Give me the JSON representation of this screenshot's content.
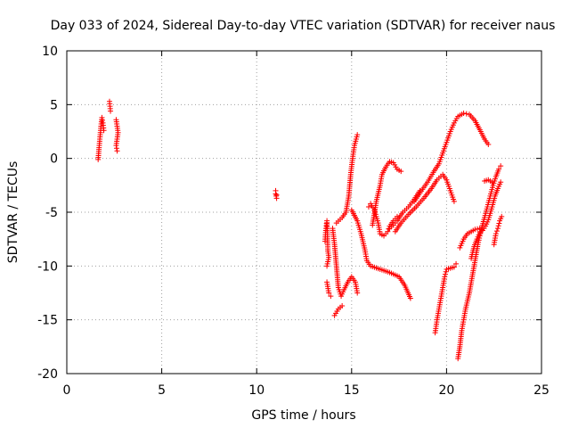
{
  "chart_data": {
    "type": "scatter",
    "title": "Day 033 of 2024, Sidereal Day-to-day VTEC variation (SDTVAR) for receiver naus",
    "xlabel": "GPS time / hours",
    "ylabel": "SDTVAR / TECUs",
    "xlim": [
      0,
      25
    ],
    "ylim": [
      -20,
      10
    ],
    "xticks": [
      "0",
      "5",
      "10",
      "15",
      "20",
      "25"
    ],
    "yticks": [
      "-20",
      "-15",
      "-10",
      "-5",
      "0",
      "5",
      "10"
    ],
    "grid": true,
    "marker": "+",
    "color": "#ff0000",
    "segments": [
      [
        [
          1.65,
          -0.1
        ],
        [
          1.7,
          1.0
        ],
        [
          1.75,
          2.0
        ],
        [
          1.8,
          3.0
        ],
        [
          1.85,
          3.8
        ],
        [
          1.9,
          3.3
        ],
        [
          1.95,
          2.6
        ]
      ],
      [
        [
          2.25,
          5.3
        ],
        [
          2.3,
          4.4
        ]
      ],
      [
        [
          2.6,
          3.6
        ],
        [
          2.65,
          3.0
        ],
        [
          2.7,
          2.4
        ],
        [
          2.6,
          1.2
        ],
        [
          2.65,
          0.7
        ]
      ],
      [
        [
          11.0,
          -3.0
        ],
        [
          11.0,
          -3.3
        ],
        [
          11.05,
          -3.7
        ],
        [
          11.05,
          -3.4
        ]
      ],
      [
        [
          13.6,
          -7.7
        ],
        [
          13.65,
          -6.5
        ],
        [
          13.7,
          -5.8
        ],
        [
          13.75,
          -8.6
        ],
        [
          13.8,
          -9.2
        ],
        [
          13.7,
          -10.0
        ]
      ],
      [
        [
          13.7,
          -11.5
        ],
        [
          13.8,
          -12.5
        ],
        [
          13.9,
          -12.8
        ]
      ],
      [
        [
          14.1,
          -14.6
        ],
        [
          14.3,
          -14.0
        ],
        [
          14.5,
          -13.7
        ]
      ],
      [
        [
          14.0,
          -6.5
        ],
        [
          14.1,
          -8.0
        ],
        [
          14.2,
          -10.0
        ],
        [
          14.3,
          -12.0
        ],
        [
          14.45,
          -12.8
        ],
        [
          14.6,
          -12.2
        ],
        [
          14.8,
          -11.5
        ],
        [
          15.0,
          -11.0
        ],
        [
          15.2,
          -11.5
        ],
        [
          15.3,
          -12.5
        ]
      ],
      [
        [
          14.2,
          -6.0
        ],
        [
          14.5,
          -5.5
        ],
        [
          14.7,
          -5.0
        ],
        [
          14.85,
          -3.5
        ],
        [
          14.95,
          -1.5
        ],
        [
          15.05,
          0.0
        ],
        [
          15.15,
          1.2
        ],
        [
          15.3,
          2.2
        ]
      ],
      [
        [
          15.0,
          -4.8
        ],
        [
          15.3,
          -5.8
        ],
        [
          15.5,
          -7.0
        ],
        [
          15.7,
          -8.5
        ],
        [
          15.8,
          -9.5
        ],
        [
          16.0,
          -10.0
        ],
        [
          16.5,
          -10.3
        ],
        [
          17.0,
          -10.6
        ],
        [
          17.5,
          -11.0
        ],
        [
          17.8,
          -11.8
        ],
        [
          18.1,
          -13.0
        ]
      ],
      [
        [
          15.9,
          -4.5
        ],
        [
          16.0,
          -4.2
        ],
        [
          16.2,
          -4.8
        ],
        [
          16.4,
          -6.0
        ],
        [
          16.5,
          -7.0
        ],
        [
          16.7,
          -7.2
        ],
        [
          16.9,
          -6.8
        ],
        [
          17.0,
          -6.3
        ],
        [
          17.2,
          -5.8
        ],
        [
          17.4,
          -5.4
        ]
      ],
      [
        [
          16.1,
          -6.2
        ],
        [
          16.3,
          -4.0
        ],
        [
          16.5,
          -2.5
        ],
        [
          16.6,
          -1.5
        ],
        [
          16.8,
          -0.8
        ],
        [
          17.0,
          -0.3
        ],
        [
          17.2,
          -0.4
        ],
        [
          17.4,
          -1.0
        ],
        [
          17.6,
          -1.2
        ]
      ],
      [
        [
          17.0,
          -6.5
        ],
        [
          17.2,
          -6.2
        ],
        [
          17.4,
          -5.8
        ],
        [
          17.7,
          -5.0
        ],
        [
          18.0,
          -4.5
        ],
        [
          18.3,
          -3.8
        ],
        [
          18.6,
          -3.0
        ]
      ],
      [
        [
          17.3,
          -6.8
        ],
        [
          17.6,
          -6.0
        ],
        [
          18.0,
          -5.2
        ],
        [
          18.4,
          -4.5
        ],
        [
          18.8,
          -3.7
        ],
        [
          19.2,
          -2.8
        ],
        [
          19.5,
          -2.0
        ],
        [
          19.8,
          -1.5
        ],
        [
          20.0,
          -2.0
        ],
        [
          20.2,
          -3.0
        ],
        [
          20.4,
          -4.0
        ]
      ],
      [
        [
          18.3,
          -4.0
        ],
        [
          18.6,
          -3.2
        ],
        [
          19.0,
          -2.2
        ],
        [
          19.3,
          -1.3
        ],
        [
          19.6,
          -0.5
        ],
        [
          19.8,
          0.5
        ],
        [
          20.0,
          1.5
        ],
        [
          20.2,
          2.5
        ],
        [
          20.4,
          3.3
        ],
        [
          20.6,
          3.9
        ],
        [
          20.9,
          4.2
        ],
        [
          21.2,
          4.1
        ],
        [
          21.5,
          3.5
        ],
        [
          21.8,
          2.5
        ],
        [
          22.0,
          1.8
        ],
        [
          22.2,
          1.3
        ]
      ],
      [
        [
          19.4,
          -16.2
        ],
        [
          19.5,
          -15.0
        ],
        [
          19.6,
          -14.0
        ],
        [
          19.7,
          -13.0
        ],
        [
          19.8,
          -12.0
        ],
        [
          19.9,
          -11.0
        ],
        [
          20.0,
          -10.3
        ],
        [
          20.2,
          -10.2
        ],
        [
          20.4,
          -10.1
        ],
        [
          20.5,
          -9.8
        ]
      ],
      [
        [
          20.6,
          -18.6
        ],
        [
          20.7,
          -17.5
        ],
        [
          20.8,
          -16.0
        ],
        [
          20.9,
          -15.0
        ],
        [
          21.0,
          -14.0
        ],
        [
          21.2,
          -12.5
        ],
        [
          21.35,
          -11.0
        ],
        [
          21.5,
          -9.5
        ],
        [
          21.65,
          -8.0
        ],
        [
          21.8,
          -6.8
        ],
        [
          22.0,
          -5.5
        ],
        [
          22.15,
          -4.5
        ],
        [
          22.3,
          -3.5
        ],
        [
          22.45,
          -2.5
        ],
        [
          22.6,
          -1.7
        ],
        [
          22.75,
          -1.0
        ],
        [
          22.85,
          -0.7
        ]
      ],
      [
        [
          21.3,
          -9.3
        ],
        [
          21.45,
          -8.2
        ],
        [
          21.6,
          -7.5
        ],
        [
          21.75,
          -6.9
        ],
        [
          21.9,
          -6.7
        ],
        [
          22.05,
          -6.3
        ],
        [
          22.2,
          -5.7
        ],
        [
          22.4,
          -4.5
        ],
        [
          22.55,
          -3.5
        ],
        [
          22.7,
          -2.8
        ],
        [
          22.85,
          -2.2
        ]
      ],
      [
        [
          20.7,
          -8.3
        ],
        [
          20.9,
          -7.5
        ],
        [
          21.1,
          -7.0
        ],
        [
          21.3,
          -6.8
        ],
        [
          21.5,
          -6.6
        ],
        [
          21.75,
          -6.5
        ]
      ],
      [
        [
          22.0,
          -2.1
        ],
        [
          22.2,
          -2.0
        ],
        [
          22.4,
          -2.2
        ]
      ],
      [
        [
          22.5,
          -8.0
        ],
        [
          22.6,
          -7.0
        ],
        [
          22.7,
          -6.5
        ],
        [
          22.8,
          -5.8
        ],
        [
          22.9,
          -5.4
        ]
      ]
    ]
  }
}
